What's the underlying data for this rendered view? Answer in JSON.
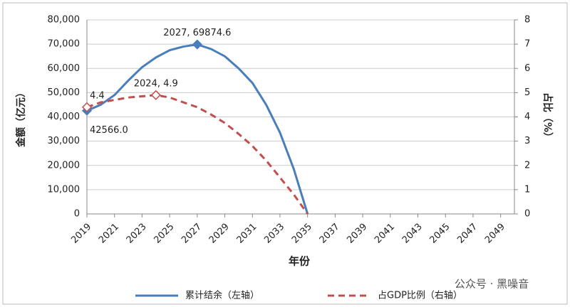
{
  "chart_data": {
    "type": "line",
    "x": [
      2019,
      2020,
      2021,
      2022,
      2023,
      2024,
      2025,
      2026,
      2027,
      2028,
      2029,
      2030,
      2031,
      2032,
      2033,
      2034,
      2035
    ],
    "series": [
      {
        "name": "累计结余（左轴）",
        "color": "#4a7ebb",
        "dash": false,
        "values": [
          42566,
          45000,
          49000,
          55000,
          60500,
          64500,
          67500,
          69000,
          69874.6,
          68000,
          65000,
          60000,
          54000,
          45000,
          33500,
          18500,
          0
        ],
        "value_labels": [
          "42566.0",
          null,
          null,
          null,
          null,
          null,
          null,
          null,
          "2027, 69874.6",
          null,
          null,
          null,
          null,
          null,
          null,
          null,
          null
        ]
      },
      {
        "name": "占GDP比例（右轴）",
        "color": "#c0504d",
        "dash": true,
        "axis": "y2",
        "values": [
          4.4,
          4.6,
          4.7,
          4.8,
          4.85,
          4.9,
          4.8,
          4.6,
          4.4,
          4.1,
          3.75,
          3.3,
          2.8,
          2.2,
          1.5,
          0.8,
          0
        ],
        "value_labels": [
          "4.4",
          null,
          null,
          null,
          null,
          "2024, 4.9",
          null,
          null,
          null,
          null,
          null,
          null,
          null,
          null,
          null,
          null,
          null
        ]
      }
    ],
    "xlim": [
      2019,
      2050
    ],
    "xticks": [
      2019,
      2021,
      2023,
      2025,
      2027,
      2029,
      2031,
      2033,
      2035,
      2037,
      2039,
      2041,
      2043,
      2045,
      2047,
      2049
    ],
    "ylim": [
      0,
      80000
    ],
    "yticks": [
      0,
      {
        "value": 10000,
        "label": "10,000"
      },
      {
        "value": 20000,
        "label": "20,000"
      },
      {
        "value": 30000,
        "label": "30,000"
      },
      {
        "value": 40000,
        "label": "40,000"
      },
      {
        "value": 50000,
        "label": "50,000"
      },
      {
        "value": 60000,
        "label": "60,000"
      },
      {
        "value": 70000,
        "label": "70,000"
      },
      {
        "value": 80000,
        "label": "80,000"
      }
    ],
    "y2lim": [
      0,
      8
    ],
    "y2ticks": [
      0,
      1,
      2,
      3,
      4,
      5,
      6,
      7,
      8
    ],
    "xlabel": "年份",
    "ylabel": "金额（亿元）",
    "y2label": "占比（%）",
    "watermark": "公众号 · 黑噪音"
  }
}
